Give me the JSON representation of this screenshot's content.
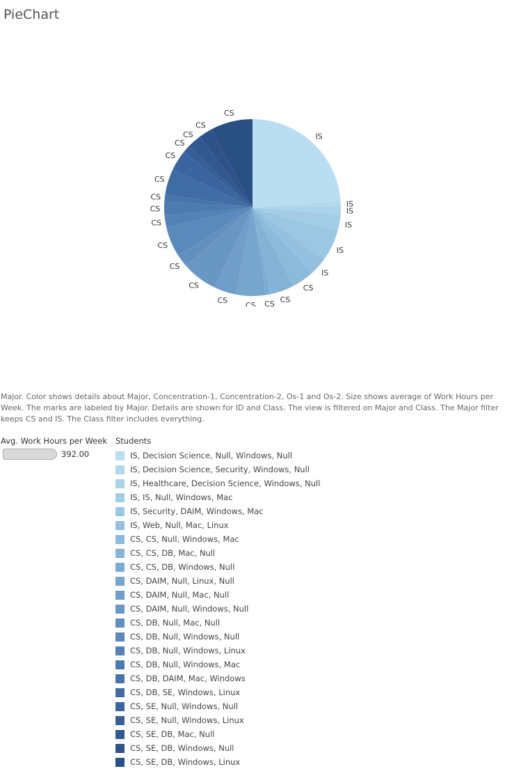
{
  "title": "PieChart",
  "caption": "Major.  Color shows details about Major, Concentration-1, Concentration-2, Os-1 and Os-2.  Size shows average of Work Hours per Week.  The marks are labeled by Major.  Details are shown for ID and Class. The view is filtered on Major and Class. The Major filter keeps CS and IS. The Class filter includes everything.",
  "size_legend": {
    "title": "Avg. Work Hours per Week",
    "value": "392.00"
  },
  "color_legend": {
    "title": "Students"
  },
  "chart_data": {
    "type": "pie",
    "title": "PieChart",
    "start_angle": 0,
    "slices": [
      {
        "label": "IS",
        "legend": "IS, Decision Science, Null, Windows, Null",
        "value": 23.9,
        "color": "#b9ddf1"
      },
      {
        "label": "IS",
        "legend": "IS, Decision Science, Security, Windows, Null",
        "value": 0.9,
        "color": "#b2d8ee"
      },
      {
        "label": "IS",
        "legend": "IS, Healthcare, Decision Science, Windows, Null",
        "value": 1.4,
        "color": "#abd3eb"
      },
      {
        "label": "IS",
        "legend": "IS, IS, Null, Windows, Mac",
        "value": 3.2,
        "color": "#a3cde7"
      },
      {
        "label": "IS",
        "legend": "IS, Security, DAIM, Windows, Mac",
        "value": 5.6,
        "color": "#9cc7e3"
      },
      {
        "label": "IS",
        "legend": "IS, Web, Null, Mac, Linux",
        "value": 3.3,
        "color": "#94c1df"
      },
      {
        "label": "CS",
        "legend": "CS, CS, Null, Windows, Mac",
        "value": 4.0,
        "color": "#8cbadb"
      },
      {
        "label": "CS",
        "legend": "CS, CS, DB, Mac, Null",
        "value": 4.5,
        "color": "#84b3d6"
      },
      {
        "label": "CS",
        "legend": "CS, CS, DB, Windows, Null",
        "value": 0.8,
        "color": "#7dacd2"
      },
      {
        "label": "CS",
        "legend": "CS, DAIM, Null, Linux, Null",
        "value": 5.4,
        "color": "#76a5cd"
      },
      {
        "label": "CS",
        "legend": "CS, DAIM, Null, Mac, Null",
        "value": 4.0,
        "color": "#6f9ec9"
      },
      {
        "label": "CS",
        "legend": "CS, DAIM, Null, Windows, Null",
        "value": 6.6,
        "color": "#6897c4"
      },
      {
        "label": "CS",
        "legend": "CS, DB, Null, Mac, Null",
        "value": 2.3,
        "color": "#6190bf"
      },
      {
        "label": "CS",
        "legend": "CS, DB, Null, Windows, Null",
        "value": 5.6,
        "color": "#5a89bb"
      },
      {
        "label": "CS",
        "legend": "CS, DB, Null, Windows, Linux",
        "value": 2.1,
        "color": "#5382b6"
      },
      {
        "label": "CS",
        "legend": "CS, DB, Null, Windows, Mac",
        "value": 2.5,
        "color": "#4c7bb1"
      },
      {
        "label": "CS",
        "legend": "CS, DB, DAIM, Mac, Windows",
        "value": 1.3,
        "color": "#4674ab"
      },
      {
        "label": "CS",
        "legend": "CS, DB, SE, Windows, Linux",
        "value": 4.7,
        "color": "#406ca5"
      },
      {
        "label": "CS",
        "legend": "CS, SE, Null, Windows, Null",
        "value": 3.8,
        "color": "#3b659e"
      },
      {
        "label": "CS",
        "legend": "CS, SE, Null, Windows, Linux",
        "value": 1.3,
        "color": "#365e97"
      },
      {
        "label": "CS",
        "legend": "CS, SE, DB, Mac, Null",
        "value": 2.6,
        "color": "#325890"
      },
      {
        "label": "CS",
        "legend": "CS, SE, DB, Windows, Null",
        "value": 2.5,
        "color": "#2e5289"
      },
      {
        "label": "CS",
        "legend": "CS, SE, DB, Windows, Linux",
        "value": 7.7,
        "color": "#2a5083"
      }
    ]
  }
}
